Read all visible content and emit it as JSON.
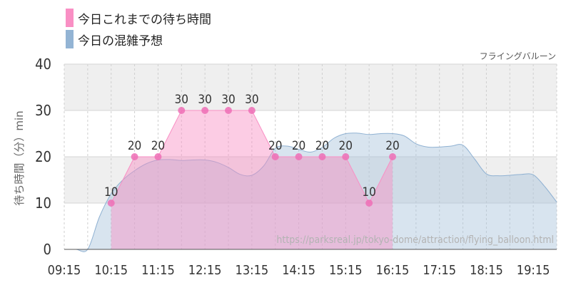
{
  "legend": {
    "wait_label": "今日これまでの待ち時間",
    "forecast_label": "今日の混雑予想"
  },
  "colors": {
    "wait_fill": "#f98fc4",
    "wait_point": "#ef6fb6",
    "forecast_fill": "#a9c3dc",
    "forecast_line": "#8fb1d2",
    "wait_legend": "#f98fc4",
    "forecast_legend": "#93b4d4"
  },
  "chart_data": {
    "type": "area",
    "title": "フライングバルーン",
    "ylabel": "待ち時間（分）min",
    "ylim": [
      0,
      40
    ],
    "xlim": [
      "09:15",
      "19:45"
    ],
    "yticks": [
      "0",
      "10",
      "20",
      "30",
      "40"
    ],
    "xticks": [
      "09:15",
      "10:15",
      "11:15",
      "12:15",
      "13:15",
      "14:15",
      "15:15",
      "16:15",
      "17:15",
      "18:15",
      "19:15"
    ],
    "grid": true,
    "watermark": "https://parksreal.jp/tokyo-dome/attraction/flying_balloon.html",
    "series": [
      {
        "name": "今日これまでの待ち時間",
        "x": [
          "10:15",
          "10:45",
          "11:15",
          "11:45",
          "12:15",
          "12:45",
          "13:15",
          "13:45",
          "14:15",
          "14:45",
          "15:15",
          "15:45",
          "16:15"
        ],
        "values": [
          10,
          20,
          20,
          30,
          30,
          30,
          30,
          20,
          20,
          20,
          20,
          10,
          20
        ],
        "labels": [
          "10",
          "20",
          "20",
          "30",
          "30",
          "30",
          "30",
          "20",
          "20",
          "20",
          "20",
          "10",
          "20"
        ]
      },
      {
        "name": "今日の混雑予想",
        "x": [
          "09:15",
          "09:30",
          "09:45",
          "10:00",
          "10:15",
          "10:30",
          "10:45",
          "11:00",
          "11:15",
          "11:30",
          "11:45",
          "12:00",
          "12:15",
          "12:30",
          "12:45",
          "13:00",
          "13:15",
          "13:30",
          "13:45",
          "14:00",
          "14:15",
          "14:30",
          "14:45",
          "15:00",
          "15:15",
          "15:30",
          "15:45",
          "16:00",
          "16:15",
          "16:30",
          "16:45",
          "17:00",
          "17:15",
          "17:30",
          "17:45",
          "18:00",
          "18:15",
          "18:30",
          "18:45",
          "19:00",
          "19:15",
          "19:30",
          "19:45"
        ],
        "values": [
          0,
          0,
          0,
          7,
          12,
          15,
          17,
          18.5,
          19.3,
          19.4,
          19.2,
          19.3,
          19.3,
          18.8,
          17.7,
          16.2,
          16.0,
          18.0,
          21.8,
          22.3,
          21.6,
          21.0,
          22.0,
          24.0,
          25.0,
          25.1,
          24.8,
          25.0,
          25.0,
          24.5,
          22.8,
          22.1,
          22.1,
          22.3,
          22.5,
          19.5,
          16.3,
          15.9,
          16.0,
          16.2,
          16.1,
          13.5,
          10.2
        ]
      }
    ]
  }
}
